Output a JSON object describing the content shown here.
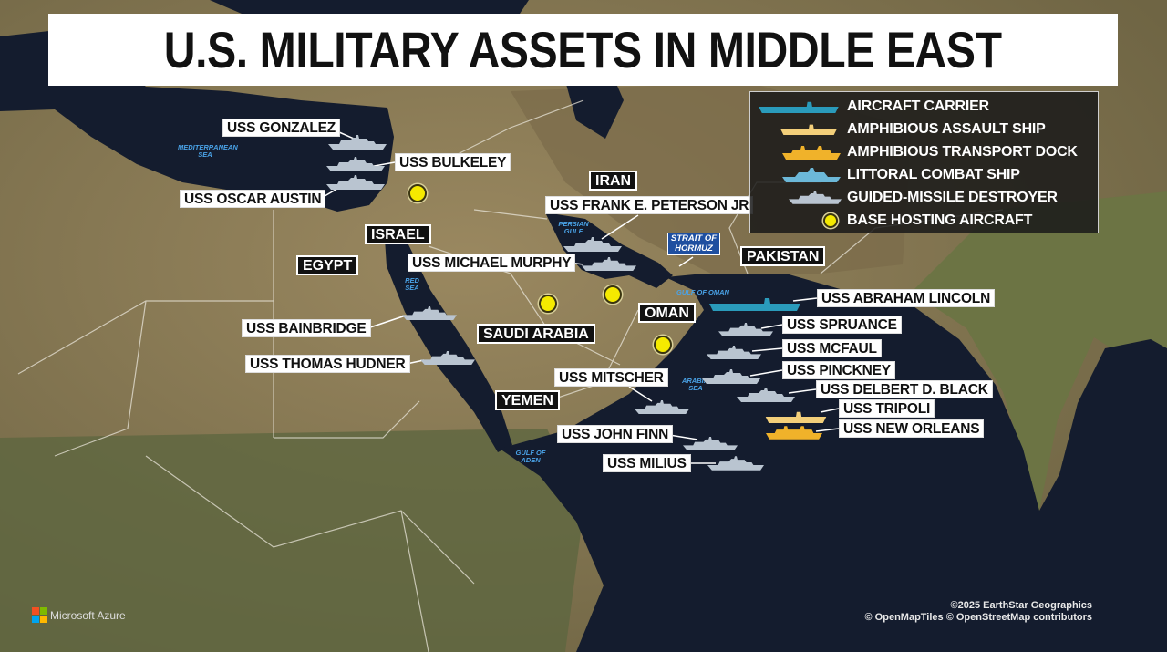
{
  "title": "U.S. MILITARY ASSETS IN MIDDLE EAST",
  "colors": {
    "aircraft_carrier": "#2a9bbb",
    "amphibious_assault_ship": "#f3cf7a",
    "amphibious_transport_dock": "#f0b22a",
    "littoral_combat_ship": "#6cb8d8",
    "guided_missile_destroyer": "#b9c4d0",
    "base": "#f5ea00",
    "sea": "#141c2e",
    "land": "#8b7b55"
  },
  "legend": [
    {
      "type": "aircraft_carrier",
      "label": "AIRCRAFT CARRIER"
    },
    {
      "type": "amphibious_assault_ship",
      "label": "AMPHIBIOUS ASSAULT SHIP"
    },
    {
      "type": "amphibious_transport_dock",
      "label": "AMPHIBIOUS TRANSPORT DOCK"
    },
    {
      "type": "littoral_combat_ship",
      "label": "LITTORAL COMBAT SHIP"
    },
    {
      "type": "guided_missile_destroyer",
      "label": "GUIDED-MISSILE DESTROYER"
    },
    {
      "type": "base",
      "label": "BASE HOSTING AIRCRAFT"
    }
  ],
  "ships": [
    {
      "name": "USS GONZALEZ",
      "type": "guided_missile_destroyer"
    },
    {
      "name": "USS BULKELEY",
      "type": "guided_missile_destroyer"
    },
    {
      "name": "USS OSCAR AUSTIN",
      "type": "guided_missile_destroyer"
    },
    {
      "name": "USS FRANK E. PETERSON JR",
      "type": "guided_missile_destroyer"
    },
    {
      "name": "USS MICHAEL MURPHY",
      "type": "guided_missile_destroyer"
    },
    {
      "name": "USS ABRAHAM LINCOLN",
      "type": "aircraft_carrier"
    },
    {
      "name": "USS SPRUANCE",
      "type": "guided_missile_destroyer"
    },
    {
      "name": "USS MCFAUL",
      "type": "guided_missile_destroyer"
    },
    {
      "name": "USS PINCKNEY",
      "type": "guided_missile_destroyer"
    },
    {
      "name": "USS DELBERT D. BLACK",
      "type": "guided_missile_destroyer"
    },
    {
      "name": "USS TRIPOLI",
      "type": "amphibious_assault_ship"
    },
    {
      "name": "USS NEW ORLEANS",
      "type": "amphibious_transport_dock"
    },
    {
      "name": "USS BAINBRIDGE",
      "type": "guided_missile_destroyer"
    },
    {
      "name": "USS THOMAS HUDNER",
      "type": "guided_missile_destroyer"
    },
    {
      "name": "USS MITSCHER",
      "type": "guided_missile_destroyer"
    },
    {
      "name": "USS JOHN FINN",
      "type": "guided_missile_destroyer"
    },
    {
      "name": "USS MILIUS",
      "type": "guided_missile_destroyer"
    }
  ],
  "countries": [
    "ISRAEL",
    "EGYPT",
    "IRAN",
    "PAKISTAN",
    "SAUDI ARABIA",
    "OMAN",
    "YEMEN"
  ],
  "strait": "STRAIT OF HORMUZ",
  "water": [
    "MEDITERRANEAN SEA",
    "RED SEA",
    "PERSIAN GULF",
    "GULF OF OMAN",
    "ARABIAN SEA",
    "GULF OF ADEN"
  ],
  "credits": {
    "line1": "©2025 EarthStar Geographics",
    "line2": "© OpenMapTiles © OpenStreetMap contributors",
    "provider": "Microsoft Azure"
  }
}
